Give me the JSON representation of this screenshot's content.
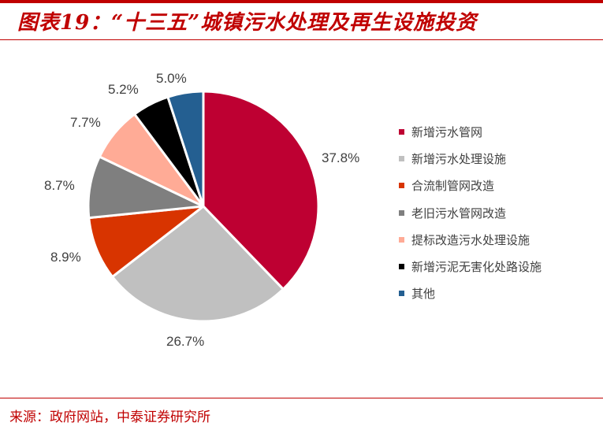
{
  "header": {
    "title": "图表19：“十三五”城镇污水处理及再生设施投资"
  },
  "chart_data": {
    "type": "pie",
    "title": "图表19：“十三五”城镇污水处理及再生设施投资",
    "categories": [
      "新增污水管网",
      "新增污水处理设施",
      "合流制管网改造",
      "老旧污水管网改造",
      "提标改造污水处理设施",
      "新增污泥无害化处路设施",
      "其他"
    ],
    "values": [
      37.8,
      26.7,
      8.9,
      8.7,
      7.7,
      5.2,
      5.0
    ],
    "labels": [
      "37.8%",
      "26.7%",
      "8.9%",
      "8.7%",
      "7.7%",
      "5.2%",
      "5.0%"
    ],
    "colors": [
      "#be0032",
      "#c0c0c0",
      "#d83400",
      "#7f7f7f",
      "#ffab96",
      "#000000",
      "#245f91"
    ],
    "start_angle": "12 o'clock, clockwise",
    "legend_position": "right"
  },
  "legend": {
    "items": [
      {
        "label": "新增污水管网",
        "color": "#be0032"
      },
      {
        "label": "新增污水处理设施",
        "color": "#c0c0c0"
      },
      {
        "label": "合流制管网改造",
        "color": "#d83400"
      },
      {
        "label": "老旧污水管网改造",
        "color": "#7f7f7f"
      },
      {
        "label": "提标改造污水处理设施",
        "color": "#ffab96"
      },
      {
        "label": "新增污泥无害化处路设施",
        "color": "#000000"
      },
      {
        "label": "其他",
        "color": "#245f91"
      }
    ]
  },
  "footer": {
    "source": "来源：政府网站，中泰证券研究所"
  }
}
